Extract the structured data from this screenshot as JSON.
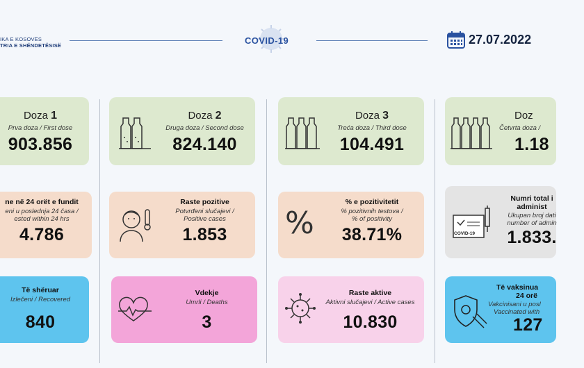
{
  "header": {
    "ministry_line1": "IKA E KOSOVËS",
    "ministry_line2": "TRIA E SHËNDETËSISË",
    "brand": "COVID-19",
    "date": "27.07.2022"
  },
  "cards": {
    "dose1": {
      "title": "Doza",
      "num": "1",
      "subtitle": "Prva doza / First dose",
      "value": "903.856"
    },
    "dose2": {
      "title": "Doza",
      "num": "2",
      "subtitle": "Druga doza / Second dose",
      "value": "824.140"
    },
    "dose3": {
      "title": "Doza",
      "num": "3",
      "subtitle": "Treća doza / Third dose",
      "value": "104.491"
    },
    "dose4": {
      "title": "Doz",
      "subtitle": "Četvrta doza /",
      "value": "1.18"
    },
    "tested": {
      "title": "ne në 24 orët e fundit",
      "subtitle_1": "eni u poslednja 24 časa /",
      "subtitle_2": "ested within 24 hrs",
      "value": "4.786"
    },
    "positive": {
      "title": "Raste pozitive",
      "subtitle_1": "Potvrđeni slučajevi /",
      "subtitle_2": "Positive cases",
      "value": "1.853"
    },
    "positivity": {
      "title": "% e pozitivitetit",
      "subtitle_1": "% pozitivnih testova /",
      "subtitle_2": "% of positivity",
      "value": "38.71%",
      "symbol": "%"
    },
    "total": {
      "title_1": "Numri total i",
      "title_2": "administ",
      "subtitle_1": "Ukupan broj dati",
      "subtitle_2": "number of admin",
      "value": "1.833.",
      "badge": "COVID-19"
    },
    "recovered": {
      "title": "Të shëruar",
      "subtitle": "Izlečeni / Recovered",
      "value": "840"
    },
    "deaths": {
      "title": "Vdekje",
      "subtitle": "Umrli / Deaths",
      "value": "3"
    },
    "active": {
      "title": "Raste aktive",
      "subtitle": "Aktivni slučajevi / Active cases",
      "value": "10.830"
    },
    "vaccinated": {
      "title_1": "Të vaksinua",
      "title_2": "24 orë",
      "subtitle_1": "Vakcinisani u posl",
      "subtitle_2": "Vaccinated with",
      "value": "127"
    }
  },
  "colors": {
    "green": "#dde9cf",
    "peach": "#f5dccb",
    "grey": "#e4e4e4",
    "blue": "#5ec4ee",
    "pink": "#f3a5d9",
    "light_pink": "#f8d2ea",
    "accent": "#2c5aa0"
  },
  "icons": [
    "vials-icon",
    "sick-person-icon",
    "percent-icon",
    "certificate-icon",
    "heartbeat-icon",
    "virus-icon",
    "shield-icon",
    "calendar-icon",
    "virus-logo-icon"
  ]
}
